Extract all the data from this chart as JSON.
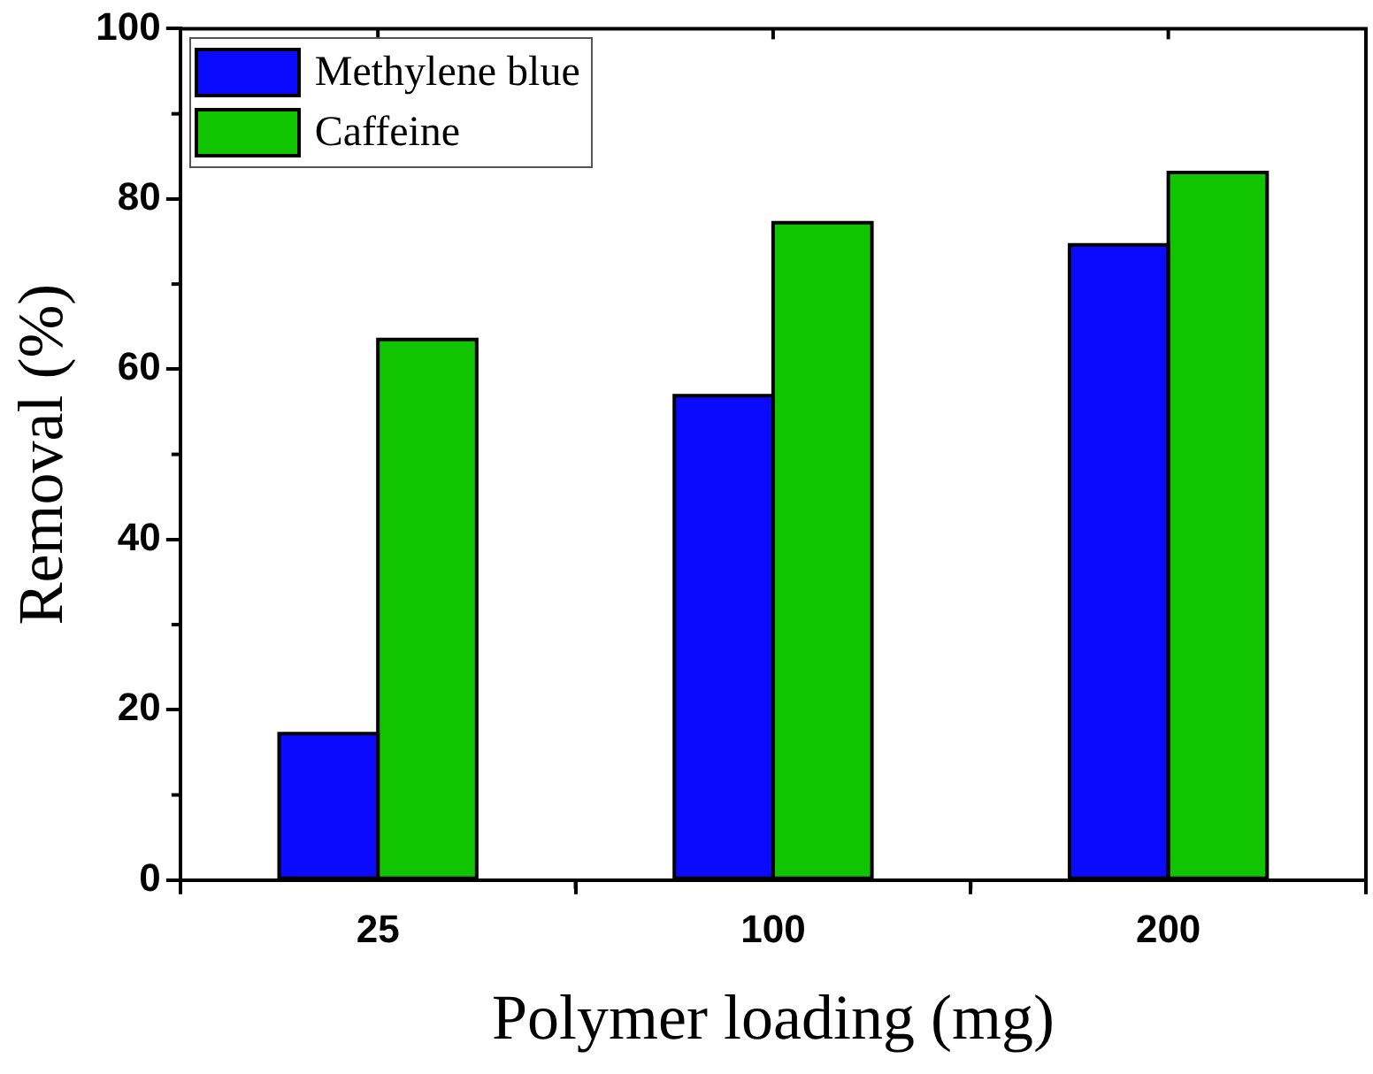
{
  "chart_data": {
    "type": "bar",
    "xlabel": "Polymer loading (mg)",
    "ylabel": "Removal (%)",
    "categories": [
      "25",
      "100",
      "200"
    ],
    "series": [
      {
        "name": "Methylene blue",
        "color": "#0a0aff",
        "values": [
          17.2,
          56.9,
          74.6
        ]
      },
      {
        "name": "Caffeine",
        "color": "#10c400",
        "values": [
          63.5,
          77.2,
          83.1
        ]
      }
    ],
    "ylim": [
      0,
      100
    ],
    "yticks": [
      0,
      20,
      40,
      60,
      80,
      100
    ],
    "legend": "top left"
  }
}
